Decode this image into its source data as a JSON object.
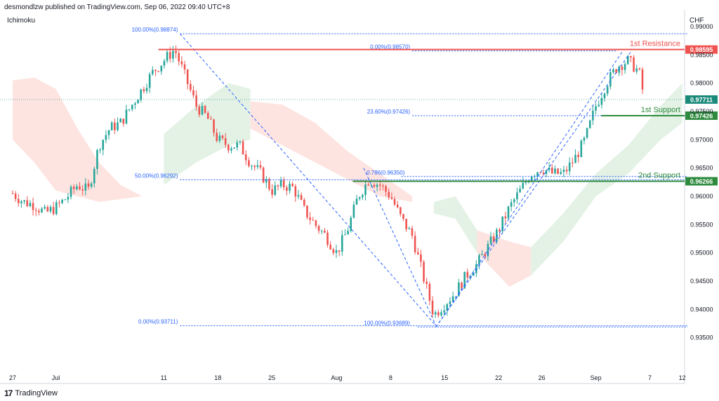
{
  "header": {
    "published": "desmondlzw published on TradingView.com, Sep 06, 2022 09:40 UTC+8",
    "indicator": "Ichimoku",
    "currency": "CHF",
    "brand": "TradingView",
    "brand_icon": "tradingview-logo-icon"
  },
  "colors": {
    "bull": "#26a69a",
    "bear": "#ef5350",
    "cloud_bull": "#e3f2e5",
    "cloud_bear": "#fde4e1",
    "resistance": "#ef5350",
    "support": "#2e8b3e",
    "fib": "#2962ff",
    "last_price": "#1b8a7a"
  },
  "chart_data": {
    "type": "candlestick",
    "symbol_currency": "CHF",
    "ylim": [
      0.93,
      0.99
    ],
    "y_ticks": [
      "0.99000",
      "0.98500",
      "0.98000",
      "0.97500",
      "0.97000",
      "0.96500",
      "0.96000",
      "0.95500",
      "0.95000",
      "0.94500",
      "0.94000",
      "0.93500"
    ],
    "x_ticks": [
      {
        "label": "27",
        "t": 0
      },
      {
        "label": "Jul",
        "t": 4
      },
      {
        "label": "11",
        "t": 14
      },
      {
        "label": "18",
        "t": 19
      },
      {
        "label": "25",
        "t": 24
      },
      {
        "label": "Aug",
        "t": 30
      },
      {
        "label": "8",
        "t": 35
      },
      {
        "label": "15",
        "t": 40
      },
      {
        "label": "22",
        "t": 45
      },
      {
        "label": "26",
        "t": 49
      },
      {
        "label": "Sep",
        "t": 54
      },
      {
        "label": "7",
        "t": 59
      },
      {
        "label": "12",
        "t": 62
      }
    ],
    "price_path": [
      [
        0,
        0.9605
      ],
      [
        1,
        0.959
      ],
      [
        2,
        0.9585
      ],
      [
        3,
        0.957
      ],
      [
        4,
        0.958
      ],
      [
        5,
        0.9598
      ],
      [
        6,
        0.962
      ],
      [
        7,
        0.961
      ],
      [
        8,
        0.969
      ],
      [
        9,
        0.972
      ],
      [
        10,
        0.973
      ],
      [
        11,
        0.976
      ],
      [
        12,
        0.979
      ],
      [
        13,
        0.982
      ],
      [
        14,
        0.984
      ],
      [
        15,
        0.986
      ],
      [
        16,
        0.981
      ],
      [
        17,
        0.976
      ],
      [
        18,
        0.974
      ],
      [
        19,
        0.97
      ],
      [
        20,
        0.969
      ],
      [
        21,
        0.969
      ],
      [
        22,
        0.966
      ],
      [
        23,
        0.964
      ],
      [
        24,
        0.961
      ],
      [
        25,
        0.962
      ],
      [
        26,
        0.9615
      ],
      [
        27,
        0.9575
      ],
      [
        28,
        0.955
      ],
      [
        29,
        0.953
      ],
      [
        30,
        0.95
      ],
      [
        31,
        0.954
      ],
      [
        32,
        0.96
      ],
      [
        33,
        0.963
      ],
      [
        34,
        0.962
      ],
      [
        35,
        0.96
      ],
      [
        36,
        0.956
      ],
      [
        37,
        0.953
      ],
      [
        38,
        0.946
      ],
      [
        39,
        0.939
      ],
      [
        40,
        0.941
      ],
      [
        41,
        0.943
      ],
      [
        42,
        0.946
      ],
      [
        43,
        0.948
      ],
      [
        44,
        0.951
      ],
      [
        45,
        0.954
      ],
      [
        46,
        0.958
      ],
      [
        47,
        0.961
      ],
      [
        48,
        0.964
      ],
      [
        49,
        0.965
      ],
      [
        50,
        0.964
      ],
      [
        51,
        0.964
      ],
      [
        52,
        0.9665
      ],
      [
        53,
        0.97
      ],
      [
        54,
        0.976
      ],
      [
        55,
        0.98
      ],
      [
        56,
        0.983
      ],
      [
        57,
        0.984
      ],
      [
        58,
        0.982
      ],
      [
        58.5,
        0.9771
      ]
    ],
    "cloud": {
      "bear_segments": [
        [
          [
            0,
            0.9805
          ],
          [
            2,
            0.981
          ],
          [
            4,
            0.979
          ],
          [
            6,
            0.972
          ],
          [
            8,
            0.966
          ],
          [
            10,
            0.962
          ],
          [
            12,
            0.96
          ],
          [
            12,
            0.96
          ],
          [
            10,
            0.9595
          ],
          [
            8,
            0.959
          ],
          [
            6,
            0.96
          ],
          [
            4,
            0.961
          ],
          [
            2,
            0.966
          ],
          [
            0,
            0.97
          ]
        ],
        [
          [
            22,
            0.9768
          ],
          [
            25,
            0.9762
          ],
          [
            28,
            0.973
          ],
          [
            31,
            0.968
          ],
          [
            34,
            0.964
          ],
          [
            37,
            0.96
          ],
          [
            37,
            0.959
          ],
          [
            34,
            0.96
          ],
          [
            31,
            0.963
          ],
          [
            28,
            0.966
          ],
          [
            25,
            0.969
          ],
          [
            22,
            0.972
          ]
        ],
        [
          [
            43,
            0.954
          ],
          [
            46,
            0.952
          ],
          [
            48,
            0.951
          ],
          [
            48,
            0.946
          ],
          [
            46,
            0.944
          ],
          [
            43,
            0.95
          ]
        ]
      ],
      "bull_segments": [
        [
          [
            14,
            0.971
          ],
          [
            17,
            0.976
          ],
          [
            20,
            0.98
          ],
          [
            22,
            0.979
          ],
          [
            22,
            0.97
          ],
          [
            20,
            0.969
          ],
          [
            17,
            0.966
          ],
          [
            14,
            0.962
          ]
        ],
        [
          [
            39,
            0.959
          ],
          [
            41,
            0.96
          ],
          [
            43,
            0.954
          ],
          [
            43,
            0.95
          ],
          [
            41,
            0.956
          ],
          [
            39,
            0.957
          ]
        ],
        [
          [
            48,
            0.951
          ],
          [
            51,
            0.957
          ],
          [
            54,
            0.964
          ],
          [
            57,
            0.969
          ],
          [
            60,
            0.976
          ],
          [
            62,
            0.98
          ],
          [
            62,
            0.973
          ],
          [
            60,
            0.97
          ],
          [
            57,
            0.964
          ],
          [
            54,
            0.96
          ],
          [
            51,
            0.952
          ],
          [
            48,
            0.946
          ]
        ]
      ]
    },
    "levels": [
      {
        "name": "1st Resistance",
        "price_label": "0.98595",
        "value": 0.98595,
        "kind": "resistance",
        "t_start": 13.5
      },
      {
        "name": "1st Support",
        "price_label": "0.97426",
        "value": 0.97426,
        "kind": "support",
        "t_start": 54.5
      },
      {
        "name": "2nd Support",
        "price_label": "0.96266",
        "value": 0.96266,
        "kind": "support",
        "t_start": 31.5
      }
    ],
    "last_price": {
      "label": "0.97711",
      "value": 0.97711
    },
    "fib_labels": [
      {
        "text": "100.00%(0.98874)",
        "value": 0.98874,
        "t_end": 15.5
      },
      {
        "text": "50.00%(0.96292)",
        "value": 0.96292,
        "t_end": 15.5
      },
      {
        "text": "0.00%(0.93711)",
        "value": 0.93711,
        "t_end": 15.5
      },
      {
        "text": "0.786(0.96350)",
        "value": 0.9635,
        "t_end": 36.5
      },
      {
        "text": "23.60%(0.97426)",
        "value": 0.97426,
        "t_end": 37
      },
      {
        "text": "100.00%(0.93689)",
        "value": 0.93689,
        "t_end": 37
      },
      {
        "text": "0.00%(0.98570)",
        "value": 0.9857,
        "t_end": 37
      }
    ],
    "fib_lines": [
      {
        "value": 0.98874,
        "t1": 15.5,
        "t2": 62.5
      },
      {
        "value": 0.96292,
        "t1": 15.5,
        "t2": 62.5
      },
      {
        "value": 0.93711,
        "t1": 15.5,
        "t2": 62.5
      },
      {
        "value": 0.9635,
        "t1": 36,
        "t2": 62.5
      },
      {
        "value": 0.97426,
        "t1": 37,
        "t2": 62.5
      },
      {
        "value": 0.93689,
        "t1": 37.5,
        "t2": 62.5
      },
      {
        "value": 0.9857,
        "t1": 37,
        "t2": 56
      }
    ],
    "trend_lines": [
      {
        "t1": 15.5,
        "v1": 0.98874,
        "t2": 39.2,
        "v2": 0.93711
      },
      {
        "t1": 32.5,
        "v1": 0.965,
        "t2": 39.2,
        "v2": 0.93711
      },
      {
        "t1": 39.2,
        "v1": 0.93689,
        "t2": 56.5,
        "v2": 0.9857
      },
      {
        "t1": 39.2,
        "v1": 0.93689,
        "t2": 57.3,
        "v2": 0.9857
      }
    ]
  }
}
